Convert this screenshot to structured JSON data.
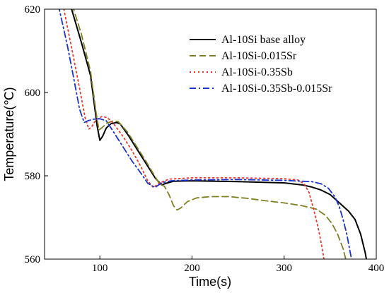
{
  "chart_data": {
    "type": "line",
    "xlabel": "Time(s)",
    "ylabel": "Temperature(℃)",
    "xlim": [
      40,
      400
    ],
    "ylim": [
      560,
      620
    ],
    "xticks": [
      100,
      200,
      300,
      400
    ],
    "yticks": [
      560,
      580,
      600,
      620
    ],
    "grid": false,
    "legend_position": "top-right",
    "series": [
      {
        "name": "Al-10Si base alloy",
        "color": "#000000",
        "dash": "solid",
        "points": [
          [
            68,
            621
          ],
          [
            80,
            612
          ],
          [
            90,
            604
          ],
          [
            97,
            592
          ],
          [
            100,
            588.5
          ],
          [
            103,
            589.5
          ],
          [
            107,
            591.5
          ],
          [
            112,
            592.5
          ],
          [
            118,
            592.8
          ],
          [
            122,
            592.5
          ],
          [
            130,
            590
          ],
          [
            140,
            586.5
          ],
          [
            150,
            583
          ],
          [
            160,
            579.5
          ],
          [
            167,
            577.8
          ],
          [
            172,
            578.2
          ],
          [
            180,
            578.7
          ],
          [
            200,
            578.8
          ],
          [
            250,
            578.6
          ],
          [
            300,
            578.3
          ],
          [
            320,
            577.8
          ],
          [
            330,
            577.3
          ],
          [
            340,
            576.6
          ],
          [
            350,
            575.5
          ],
          [
            360,
            573.5
          ],
          [
            370,
            571.5
          ],
          [
            377,
            569.5
          ],
          [
            383,
            566
          ],
          [
            388,
            561.5
          ],
          [
            390,
            559
          ]
        ]
      },
      {
        "name": "Al-10Si-0.015Sr",
        "color": "#7f7f24",
        "dash": "dashed",
        "points": [
          [
            70,
            621
          ],
          [
            80,
            614
          ],
          [
            90,
            605
          ],
          [
            96,
            595
          ],
          [
            99,
            591
          ],
          [
            102,
            591.5
          ],
          [
            108,
            592.7
          ],
          [
            115,
            593.2
          ],
          [
            120,
            593
          ],
          [
            130,
            590.5
          ],
          [
            140,
            587
          ],
          [
            150,
            583.5
          ],
          [
            160,
            579.8
          ],
          [
            165,
            578
          ],
          [
            170,
            577.5
          ],
          [
            175,
            575.5
          ],
          [
            180,
            572.8
          ],
          [
            184,
            571.8
          ],
          [
            188,
            572.3
          ],
          [
            195,
            573.8
          ],
          [
            205,
            574.7
          ],
          [
            220,
            575
          ],
          [
            240,
            575
          ],
          [
            260,
            574.6
          ],
          [
            280,
            574
          ],
          [
            300,
            573.5
          ],
          [
            320,
            572.8
          ],
          [
            335,
            572
          ],
          [
            345,
            570.5
          ],
          [
            352,
            568.5
          ],
          [
            358,
            566
          ],
          [
            364,
            562.5
          ],
          [
            368,
            559
          ]
        ]
      },
      {
        "name": "Al-10Si-0.35Sb",
        "color": "#e8382f",
        "dash": "dotted",
        "points": [
          [
            60,
            621
          ],
          [
            70,
            610
          ],
          [
            78,
            601
          ],
          [
            84,
            594
          ],
          [
            88,
            591.2
          ],
          [
            91,
            591.7
          ],
          [
            96,
            593.5
          ],
          [
            102,
            594.2
          ],
          [
            108,
            594
          ],
          [
            115,
            592.5
          ],
          [
            125,
            589.5
          ],
          [
            135,
            586
          ],
          [
            145,
            582
          ],
          [
            152,
            578.8
          ],
          [
            158,
            577.2
          ],
          [
            165,
            578.3
          ],
          [
            175,
            579.2
          ],
          [
            200,
            579.5
          ],
          [
            250,
            579.5
          ],
          [
            300,
            579.3
          ],
          [
            315,
            579
          ],
          [
            322,
            578
          ],
          [
            327,
            576
          ],
          [
            332,
            572
          ],
          [
            337,
            567.5
          ],
          [
            341,
            563
          ],
          [
            344,
            559
          ]
        ]
      },
      {
        "name": "Al-10Si-0.35Sb-0.015Sr",
        "color": "#1a32d2",
        "dash": "dashdot",
        "points": [
          [
            55,
            621
          ],
          [
            65,
            611
          ],
          [
            72,
            603
          ],
          [
            78,
            596
          ],
          [
            83,
            592.8
          ],
          [
            87,
            593.2
          ],
          [
            93,
            593.6
          ],
          [
            100,
            593.7
          ],
          [
            107,
            593.2
          ],
          [
            115,
            590.5
          ],
          [
            125,
            587
          ],
          [
            135,
            583.5
          ],
          [
            145,
            580.5
          ],
          [
            152,
            578.2
          ],
          [
            160,
            577.2
          ],
          [
            167,
            578.3
          ],
          [
            177,
            578.8
          ],
          [
            200,
            579
          ],
          [
            250,
            579.1
          ],
          [
            300,
            578.9
          ],
          [
            330,
            578.6
          ],
          [
            340,
            578.1
          ],
          [
            348,
            577
          ],
          [
            355,
            575
          ],
          [
            360,
            572.5
          ],
          [
            364,
            569.5
          ],
          [
            368,
            566
          ],
          [
            371,
            562.5
          ],
          [
            374,
            559
          ]
        ]
      }
    ]
  }
}
